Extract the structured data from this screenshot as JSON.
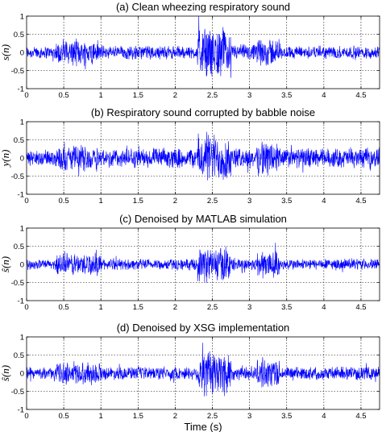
{
  "chart_data": [
    {
      "type": "line",
      "title": "(a) Clean wheezing respiratory sound",
      "ylabel": "s(n)",
      "xlabel": "",
      "xlim": [
        0,
        4.75
      ],
      "ylim": [
        -1,
        1
      ],
      "xticks": [
        "0",
        "0.5",
        "1",
        "1.5",
        "2",
        "2.5",
        "3",
        "3.5",
        "4",
        "4.5"
      ],
      "yticks": [
        "1",
        "0.5",
        "0",
        "-0.5",
        "-1"
      ],
      "grid": "dotted",
      "series": [
        {
          "color": "#0000ff",
          "envelope_segments": [
            {
              "t": [
                0,
                0.4
              ],
              "amp": 0.2
            },
            {
              "t": [
                0.4,
                1.0
              ],
              "amp": 0.4
            },
            {
              "t": [
                1.0,
                1.8
              ],
              "amp": 0.22
            },
            {
              "t": [
                1.8,
                2.3
              ],
              "amp": 0.2
            },
            {
              "t": [
                2.3,
                2.75
              ],
              "amp": 0.75
            },
            {
              "t": [
                2.75,
                3.1
              ],
              "amp": 0.25
            },
            {
              "t": [
                3.1,
                3.4
              ],
              "amp": 0.45
            },
            {
              "t": [
                3.4,
                4.75
              ],
              "amp": 0.2
            }
          ]
        }
      ]
    },
    {
      "type": "line",
      "title": "(b) Respiratory sound corrupted by babble noise",
      "ylabel": "y(n)",
      "xlabel": "",
      "xlim": [
        0,
        4.75
      ],
      "ylim": [
        -1,
        1
      ],
      "xticks": [
        "0",
        "0.5",
        "1",
        "1.5",
        "2",
        "2.5",
        "3",
        "3.5",
        "4",
        "4.5"
      ],
      "yticks": [
        "1",
        "0.5",
        "0",
        "-0.5",
        "-1"
      ],
      "grid": "dotted",
      "series": [
        {
          "color": "#0000ff",
          "envelope_segments": [
            {
              "t": [
                0,
                0.4
              ],
              "amp": 0.25
            },
            {
              "t": [
                0.4,
                1.0
              ],
              "amp": 0.4
            },
            {
              "t": [
                1.0,
                2.3
              ],
              "amp": 0.3
            },
            {
              "t": [
                2.3,
                2.75
              ],
              "amp": 0.75
            },
            {
              "t": [
                2.75,
                3.1
              ],
              "amp": 0.3
            },
            {
              "t": [
                3.1,
                3.4
              ],
              "amp": 0.55
            },
            {
              "t": [
                3.4,
                4.75
              ],
              "amp": 0.3
            }
          ]
        }
      ]
    },
    {
      "type": "line",
      "title": "(c) Denoised by MATLAB simulation",
      "ylabel": "ŝ(n)",
      "xlabel": "",
      "xlim": [
        0,
        4.75
      ],
      "ylim": [
        -1,
        1
      ],
      "xticks": [
        "0",
        "0.5",
        "1",
        "1.5",
        "2",
        "2.5",
        "3",
        "3.5",
        "4",
        "4.5"
      ],
      "yticks": [
        "1",
        "0.5",
        "0",
        "-0.5",
        "-1"
      ],
      "grid": "dotted",
      "series": [
        {
          "color": "#0000ff",
          "envelope_segments": [
            {
              "t": [
                0,
                0.4
              ],
              "amp": 0.15
            },
            {
              "t": [
                0.4,
                1.0
              ],
              "amp": 0.35
            },
            {
              "t": [
                1.0,
                2.3
              ],
              "amp": 0.17
            },
            {
              "t": [
                2.3,
                2.75
              ],
              "amp": 0.55
            },
            {
              "t": [
                2.75,
                3.1
              ],
              "amp": 0.2
            },
            {
              "t": [
                3.1,
                3.4
              ],
              "amp": 0.45
            },
            {
              "t": [
                3.4,
                4.75
              ],
              "amp": 0.17
            }
          ]
        }
      ]
    },
    {
      "type": "line",
      "title": "(d) Denoised by XSG implementation",
      "ylabel": "ŝ(n)",
      "xlabel": "Time (s)",
      "xlim": [
        0,
        4.75
      ],
      "ylim": [
        -1,
        1
      ],
      "xticks": [
        "0",
        "0.5",
        "1",
        "1.5",
        "2",
        "2.5",
        "3",
        "3.5",
        "4",
        "4.5"
      ],
      "yticks": [
        "1",
        "0.5",
        "0",
        "-0.5",
        "-1"
      ],
      "grid": "dotted",
      "series": [
        {
          "color": "#0000ff",
          "envelope_segments": [
            {
              "t": [
                0,
                0.4
              ],
              "amp": 0.17
            },
            {
              "t": [
                0.4,
                1.0
              ],
              "amp": 0.35
            },
            {
              "t": [
                1.0,
                2.3
              ],
              "amp": 0.2
            },
            {
              "t": [
                2.3,
                2.75
              ],
              "amp": 0.75
            },
            {
              "t": [
                2.75,
                3.1
              ],
              "amp": 0.22
            },
            {
              "t": [
                3.1,
                3.4
              ],
              "amp": 0.45
            },
            {
              "t": [
                3.4,
                4.75
              ],
              "amp": 0.2
            }
          ]
        }
      ]
    }
  ]
}
